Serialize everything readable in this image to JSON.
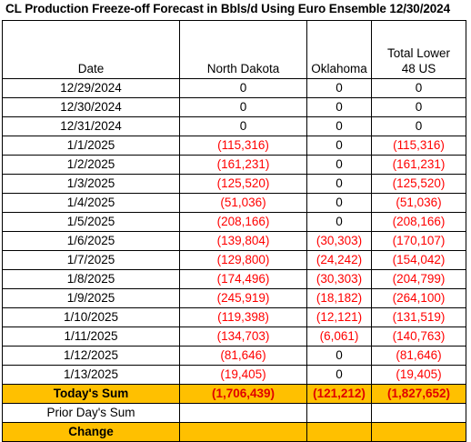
{
  "title": "CL Production Freeze-off Forecast in Bbls/d Using Euro Ensemble 12/30/2024",
  "columns": [
    "Date",
    "North Dakota",
    "Oklahoma",
    "Total Lower 48 US"
  ],
  "rows": [
    {
      "date": "12/29/2024",
      "nd": "0",
      "ok": "0",
      "total": "0"
    },
    {
      "date": "12/30/2024",
      "nd": "0",
      "ok": "0",
      "total": "0"
    },
    {
      "date": "12/31/2024",
      "nd": "0",
      "ok": "0",
      "total": "0"
    },
    {
      "date": "1/1/2025",
      "nd": "(115,316)",
      "ok": "0",
      "total": "(115,316)"
    },
    {
      "date": "1/2/2025",
      "nd": "(161,231)",
      "ok": "0",
      "total": "(161,231)"
    },
    {
      "date": "1/3/2025",
      "nd": "(125,520)",
      "ok": "0",
      "total": "(125,520)"
    },
    {
      "date": "1/4/2025",
      "nd": "(51,036)",
      "ok": "0",
      "total": "(51,036)"
    },
    {
      "date": "1/5/2025",
      "nd": "(208,166)",
      "ok": "0",
      "total": "(208,166)"
    },
    {
      "date": "1/6/2025",
      "nd": "(139,804)",
      "ok": "(30,303)",
      "total": "(170,107)"
    },
    {
      "date": "1/7/2025",
      "nd": "(129,800)",
      "ok": "(24,242)",
      "total": "(154,042)"
    },
    {
      "date": "1/8/2025",
      "nd": "(174,496)",
      "ok": "(30,303)",
      "total": "(204,799)"
    },
    {
      "date": "1/9/2025",
      "nd": "(245,919)",
      "ok": "(18,182)",
      "total": "(264,100)"
    },
    {
      "date": "1/10/2025",
      "nd": "(119,398)",
      "ok": "(12,121)",
      "total": "(131,519)"
    },
    {
      "date": "1/11/2025",
      "nd": "(134,703)",
      "ok": "(6,061)",
      "total": "(140,763)"
    },
    {
      "date": "1/12/2025",
      "nd": "(81,646)",
      "ok": "0",
      "total": "(81,646)"
    },
    {
      "date": "1/13/2025",
      "nd": "(19,405)",
      "ok": "0",
      "total": "(19,405)"
    }
  ],
  "summary": {
    "todays_sum": {
      "label": "Today's Sum",
      "nd": "(1,706,439)",
      "ok": "(121,212)",
      "total": "(1,827,652)"
    },
    "prior_day_sum": {
      "label": "Prior Day's Sum"
    },
    "change": {
      "label": "Change"
    }
  },
  "colors": {
    "highlight": "#ffc000",
    "negative": "#ff0000"
  }
}
